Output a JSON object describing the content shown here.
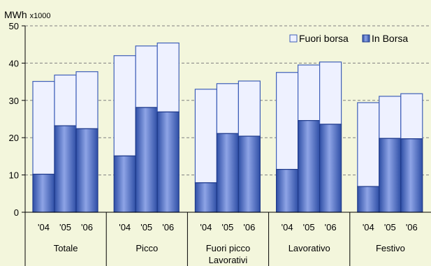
{
  "chart_data": {
    "type": "bar",
    "stacked": true,
    "y_unit_label": "MWh",
    "y_unit_multiplier": "x1000",
    "ylim": [
      0,
      50
    ],
    "y_ticks": [
      0,
      10,
      20,
      30,
      40,
      50
    ],
    "grid": "horizontal dashed",
    "legend_position": "top-right",
    "groups": [
      {
        "label": "Totale",
        "label_line2": ""
      },
      {
        "label": "Picco",
        "label_line2": ""
      },
      {
        "label": "Fuori picco",
        "label_line2": "Lavorativi"
      },
      {
        "label": "Lavorativo",
        "label_line2": ""
      },
      {
        "label": "Festivo",
        "label_line2": ""
      }
    ],
    "years": [
      "'04",
      "'05",
      "'06"
    ],
    "series": [
      {
        "name": "In Borsa",
        "color": "#4f6fc4",
        "values": [
          [
            10.2,
            23.2,
            22.4
          ],
          [
            15.1,
            28.1,
            26.9
          ],
          [
            7.9,
            21.1,
            20.4
          ],
          [
            11.5,
            24.6,
            23.6
          ],
          [
            6.9,
            19.8,
            19.7
          ]
        ]
      },
      {
        "name": "Fuori borsa",
        "color": "#eef1ff",
        "values": [
          [
            24.9,
            13.6,
            15.3
          ],
          [
            26.9,
            16.5,
            18.5
          ],
          [
            25.1,
            13.4,
            14.8
          ],
          [
            26.0,
            14.9,
            16.7
          ],
          [
            22.5,
            11.3,
            12.1
          ]
        ]
      }
    ]
  }
}
